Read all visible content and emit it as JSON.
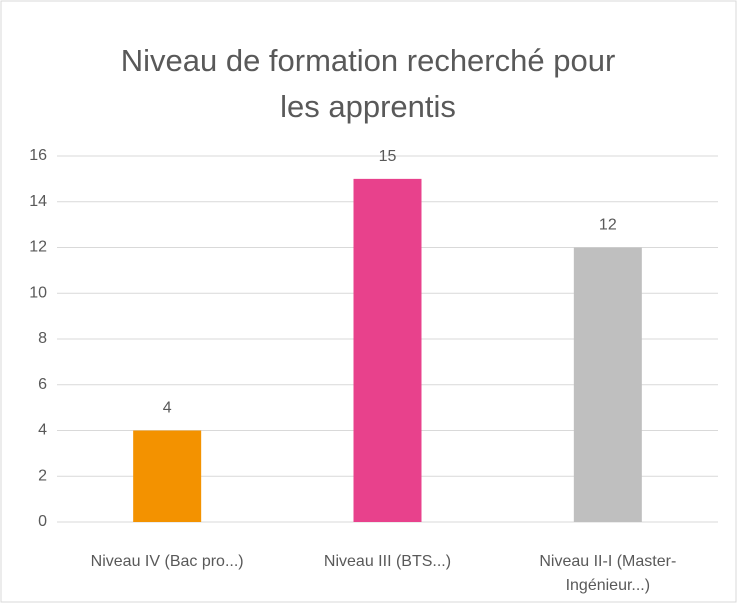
{
  "chart_data": {
    "type": "bar",
    "title": "Niveau de formation recherché pour les apprentis",
    "categories": [
      "Niveau IV (Bac pro...)",
      "Niveau III (BTS...)",
      "Niveau II-I (Master-Ingénieur...)"
    ],
    "values": [
      4,
      15,
      12
    ],
    "colors": [
      "#f39200",
      "#e8418c",
      "#bfbfbf"
    ],
    "ylim": [
      0,
      16
    ],
    "yticks": [
      0,
      2,
      4,
      6,
      8,
      10,
      12,
      14,
      16
    ],
    "grid": true
  }
}
